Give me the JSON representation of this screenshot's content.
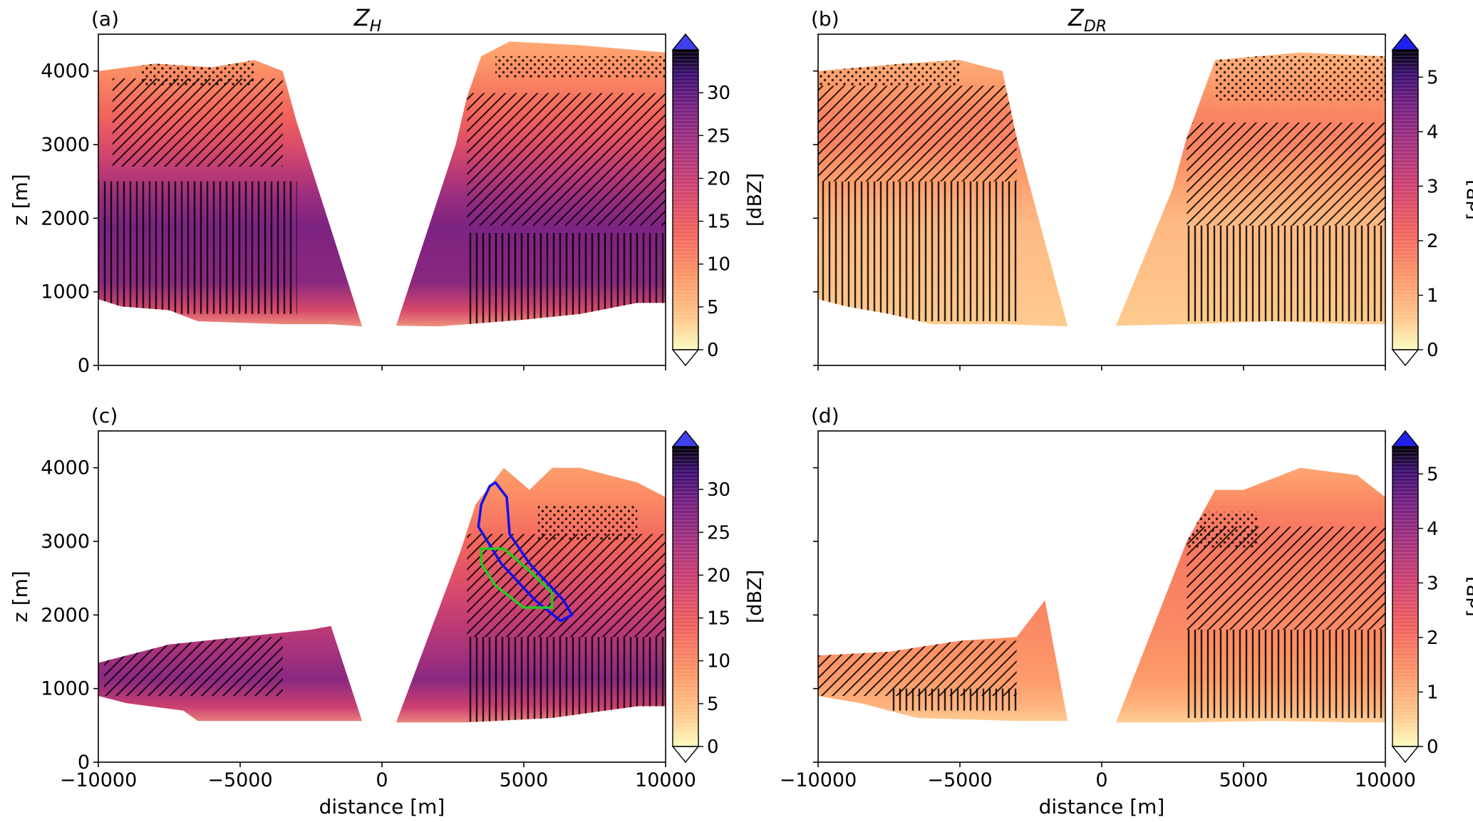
{
  "chart_data": [
    {
      "type": "heatmap",
      "panel_label": "(a)",
      "title_main": "Z",
      "title_sub": "H",
      "xlabel": "",
      "ylabel": "z [m]",
      "xlim": [
        -10000,
        10000
      ],
      "ylim": [
        0,
        4500
      ],
      "x_ticks": [
        -10000,
        -5000,
        0,
        5000,
        10000
      ],
      "y_ticks": [
        0,
        1000,
        2000,
        3000,
        4000
      ],
      "y_tick_labels": [
        "0",
        "1000",
        "2000",
        "3000",
        "4000"
      ],
      "colorbar": {
        "label": "[dBZ]",
        "min": 0,
        "max": 35,
        "ticks": [
          "0",
          "5",
          "10",
          "15",
          "20",
          "25",
          "30"
        ],
        "tick_values": [
          0,
          5,
          10,
          15,
          20,
          25,
          30
        ],
        "colormap": "magma_r",
        "extend": "both",
        "extend_max_color": "#4040ee"
      },
      "left_region": {
        "polygon_m": [
          [
            -10000,
            900
          ],
          [
            -9200,
            800
          ],
          [
            -7500,
            750
          ],
          [
            -6500,
            600
          ],
          [
            -3500,
            560
          ],
          [
            -1800,
            560
          ],
          [
            -700,
            530
          ],
          [
            -3000,
            3300
          ],
          [
            -3500,
            4000
          ],
          [
            -4500,
            4150
          ],
          [
            -6000,
            4050
          ],
          [
            -8000,
            4100
          ],
          [
            -10000,
            4000
          ]
        ]
      },
      "right_region": {
        "polygon_m": [
          [
            500,
            540
          ],
          [
            2000,
            530
          ],
          [
            5000,
            620
          ],
          [
            7000,
            700
          ],
          [
            9000,
            850
          ],
          [
            10000,
            850
          ],
          [
            10000,
            4250
          ],
          [
            7000,
            4350
          ],
          [
            4500,
            4400
          ],
          [
            3500,
            4200
          ],
          [
            3000,
            3650
          ],
          [
            2600,
            3000
          ]
        ]
      },
      "profile": {
        "surface": 4,
        "low": 26,
        "mid": 28,
        "upper": 15,
        "top": 6
      },
      "hatches": [
        {
          "pattern": "vertical",
          "x": [
            -10000,
            -3000
          ],
          "y": [
            700,
            2500
          ]
        },
        {
          "pattern": "diagonal",
          "x": [
            -9500,
            -3500
          ],
          "y": [
            2700,
            3900
          ]
        },
        {
          "pattern": "dots",
          "x": [
            -8500,
            -4500
          ],
          "y": [
            3800,
            4200
          ]
        },
        {
          "pattern": "vertical",
          "x": [
            3000,
            10000
          ],
          "y": [
            550,
            1800
          ]
        },
        {
          "pattern": "diagonal",
          "x": [
            3000,
            10000
          ],
          "y": [
            1900,
            3700
          ]
        },
        {
          "pattern": "dots",
          "x": [
            4000,
            10000
          ],
          "y": [
            3900,
            4200
          ]
        }
      ],
      "contours": []
    },
    {
      "type": "heatmap",
      "panel_label": "(b)",
      "title_main": "Z",
      "title_sub": "DR",
      "xlabel": "",
      "ylabel": "",
      "xlim": [
        -10000,
        10000
      ],
      "ylim": [
        0,
        4500
      ],
      "x_ticks": [
        -10000,
        -5000,
        0,
        5000,
        10000
      ],
      "y_ticks": [
        0,
        1000,
        2000,
        3000,
        4000
      ],
      "y_tick_labels": [],
      "colorbar": {
        "label": "[dB]",
        "min": 0,
        "max": 5.5,
        "ticks": [
          "0",
          "1",
          "2",
          "3",
          "4",
          "5"
        ],
        "tick_values": [
          0,
          1,
          2,
          3,
          4,
          5
        ],
        "colormap": "magma_r",
        "extend": "both",
        "extend_max_color": "#2020ee"
      },
      "left_region": {
        "polygon_m": [
          [
            -10000,
            900
          ],
          [
            -9000,
            800
          ],
          [
            -7500,
            700
          ],
          [
            -6000,
            560
          ],
          [
            -3500,
            560
          ],
          [
            -1200,
            530
          ],
          [
            -3000,
            3100
          ],
          [
            -3500,
            4000
          ],
          [
            -5000,
            4150
          ],
          [
            -7000,
            4100
          ],
          [
            -10000,
            4000
          ]
        ]
      },
      "right_region": {
        "polygon_m": [
          [
            500,
            540
          ],
          [
            3000,
            560
          ],
          [
            6000,
            600
          ],
          [
            9000,
            560
          ],
          [
            10000,
            560
          ],
          [
            10000,
            4200
          ],
          [
            7000,
            4250
          ],
          [
            4000,
            4150
          ],
          [
            3000,
            3100
          ],
          [
            2500,
            2400
          ]
        ]
      },
      "profile": {
        "surface": 0.5,
        "low": 0.6,
        "mid": 0.8,
        "upper": 1.8,
        "top": 0.7
      },
      "hatches": [
        {
          "pattern": "vertical",
          "x": [
            -10000,
            -3000
          ],
          "y": [
            600,
            2500
          ]
        },
        {
          "pattern": "diagonal",
          "x": [
            -10000,
            -3000
          ],
          "y": [
            2500,
            3800
          ]
        },
        {
          "pattern": "dots",
          "x": [
            -10000,
            -5000
          ],
          "y": [
            3800,
            4200
          ]
        },
        {
          "pattern": "vertical",
          "x": [
            3000,
            10000
          ],
          "y": [
            600,
            1900
          ]
        },
        {
          "pattern": "diagonal",
          "x": [
            3000,
            10000
          ],
          "y": [
            1900,
            3300
          ]
        },
        {
          "pattern": "dots",
          "x": [
            4000,
            10000
          ],
          "y": [
            3600,
            4200
          ]
        }
      ],
      "contours": []
    },
    {
      "type": "heatmap",
      "panel_label": "(c)",
      "title_main": "",
      "title_sub": "",
      "xlabel": "distance [m]",
      "ylabel": "z [m]",
      "xlim": [
        -10000,
        10000
      ],
      "ylim": [
        0,
        4500
      ],
      "x_ticks": [
        -10000,
        -5000,
        0,
        5000,
        10000
      ],
      "x_tick_labels": [
        "−10000",
        "−5000",
        "0",
        "5000",
        "10000"
      ],
      "y_ticks": [
        0,
        1000,
        2000,
        3000,
        4000
      ],
      "y_tick_labels": [
        "0",
        "1000",
        "2000",
        "3000",
        "4000"
      ],
      "colorbar": {
        "label": "[dBZ]",
        "min": 0,
        "max": 35,
        "ticks": [
          "0",
          "5",
          "10",
          "15",
          "20",
          "25",
          "30"
        ],
        "tick_values": [
          0,
          5,
          10,
          15,
          20,
          25,
          30
        ],
        "colormap": "magma_r",
        "extend": "both",
        "extend_max_color": "#4040ee"
      },
      "left_region": {
        "polygon_m": [
          [
            -10000,
            900
          ],
          [
            -9000,
            800
          ],
          [
            -7000,
            700
          ],
          [
            -6500,
            560
          ],
          [
            -3000,
            560
          ],
          [
            -700,
            560
          ],
          [
            -1800,
            1850
          ],
          [
            -2500,
            1800
          ],
          [
            -5000,
            1700
          ],
          [
            -7500,
            1600
          ],
          [
            -10000,
            1350
          ]
        ]
      },
      "right_region": {
        "polygon_m": [
          [
            500,
            540
          ],
          [
            3000,
            540
          ],
          [
            6000,
            600
          ],
          [
            9000,
            760
          ],
          [
            10000,
            760
          ],
          [
            10000,
            3600
          ],
          [
            9000,
            3800
          ],
          [
            7000,
            4000
          ],
          [
            6000,
            4000
          ],
          [
            5200,
            3700
          ],
          [
            4300,
            4000
          ],
          [
            3300,
            3500
          ],
          [
            2800,
            2900
          ]
        ]
      },
      "profile": {
        "surface": 5,
        "low": 28,
        "mid": 20,
        "upper": 12,
        "top": 5
      },
      "hatches": [
        {
          "pattern": "diagonal",
          "x": [
            -9800,
            -3500
          ],
          "y": [
            900,
            1700
          ]
        },
        {
          "pattern": "vertical",
          "x": [
            3000,
            10000
          ],
          "y": [
            550,
            1700
          ]
        },
        {
          "pattern": "diagonal",
          "x": [
            3000,
            10000
          ],
          "y": [
            1700,
            3100
          ]
        },
        {
          "pattern": "dots",
          "x": [
            5500,
            9000
          ],
          "y": [
            3000,
            3500
          ]
        }
      ],
      "contours": [
        {
          "color": "#1010ee",
          "points_m": [
            [
              4000,
              3800
            ],
            [
              4400,
              3600
            ],
            [
              4500,
              3100
            ],
            [
              5200,
              2700
            ],
            [
              6400,
              2200
            ],
            [
              6700,
              2000
            ],
            [
              6300,
              1920
            ],
            [
              5400,
              2200
            ],
            [
              4200,
              2700
            ],
            [
              3400,
              3200
            ],
            [
              3500,
              3500
            ],
            [
              3800,
              3750
            ]
          ]
        },
        {
          "color": "#22cc22",
          "points_m": [
            [
              3500,
              2900
            ],
            [
              4300,
              2900
            ],
            [
              5200,
              2600
            ],
            [
              6000,
              2300
            ],
            [
              6000,
              2100
            ],
            [
              5000,
              2100
            ],
            [
              4000,
              2400
            ],
            [
              3500,
              2700
            ]
          ]
        }
      ]
    },
    {
      "type": "heatmap",
      "panel_label": "(d)",
      "title_main": "",
      "title_sub": "",
      "xlabel": "distance [m]",
      "ylabel": "",
      "xlim": [
        -10000,
        10000
      ],
      "ylim": [
        0,
        4500
      ],
      "x_ticks": [
        -10000,
        -5000,
        0,
        5000,
        10000
      ],
      "x_tick_labels": [
        "−10000",
        "−5000",
        "0",
        "5000",
        "10000"
      ],
      "y_ticks": [
        0,
        1000,
        2000,
        3000,
        4000
      ],
      "y_tick_labels": [],
      "colorbar": {
        "label": "[dB]",
        "min": 0,
        "max": 5.5,
        "ticks": [
          "0",
          "1",
          "2",
          "3",
          "4",
          "5"
        ],
        "tick_values": [
          0,
          1,
          2,
          3,
          4,
          5
        ],
        "colormap": "magma_r",
        "extend": "both",
        "extend_max_color": "#2020ee"
      },
      "left_region": {
        "polygon_m": [
          [
            -10000,
            900
          ],
          [
            -8500,
            800
          ],
          [
            -6500,
            600
          ],
          [
            -3000,
            560
          ],
          [
            -1200,
            560
          ],
          [
            -2000,
            2200
          ],
          [
            -3000,
            1700
          ],
          [
            -5000,
            1650
          ],
          [
            -7500,
            1500
          ],
          [
            -10000,
            1450
          ]
        ]
      },
      "right_region": {
        "polygon_m": [
          [
            500,
            540
          ],
          [
            3000,
            540
          ],
          [
            6000,
            560
          ],
          [
            9000,
            540
          ],
          [
            10000,
            540
          ],
          [
            10000,
            3600
          ],
          [
            9000,
            3900
          ],
          [
            7000,
            4000
          ],
          [
            5000,
            3700
          ],
          [
            4000,
            3700
          ],
          [
            3000,
            3000
          ]
        ]
      },
      "profile": {
        "surface": 0.3,
        "low": 1.2,
        "mid": 1.6,
        "upper": 1.9,
        "top": 0.6
      },
      "hatches": [
        {
          "pattern": "diagonal",
          "x": [
            -10000,
            -3000
          ],
          "y": [
            900,
            1650
          ]
        },
        {
          "pattern": "vertical",
          "x": [
            -7500,
            -3000
          ],
          "y": [
            700,
            1000
          ]
        },
        {
          "pattern": "vertical",
          "x": [
            3000,
            10000
          ],
          "y": [
            600,
            1800
          ]
        },
        {
          "pattern": "diagonal",
          "x": [
            3000,
            10000
          ],
          "y": [
            1800,
            3200
          ]
        },
        {
          "pattern": "dots",
          "x": [
            3000,
            5500
          ],
          "y": [
            2900,
            3400
          ]
        }
      ],
      "contours": []
    }
  ]
}
